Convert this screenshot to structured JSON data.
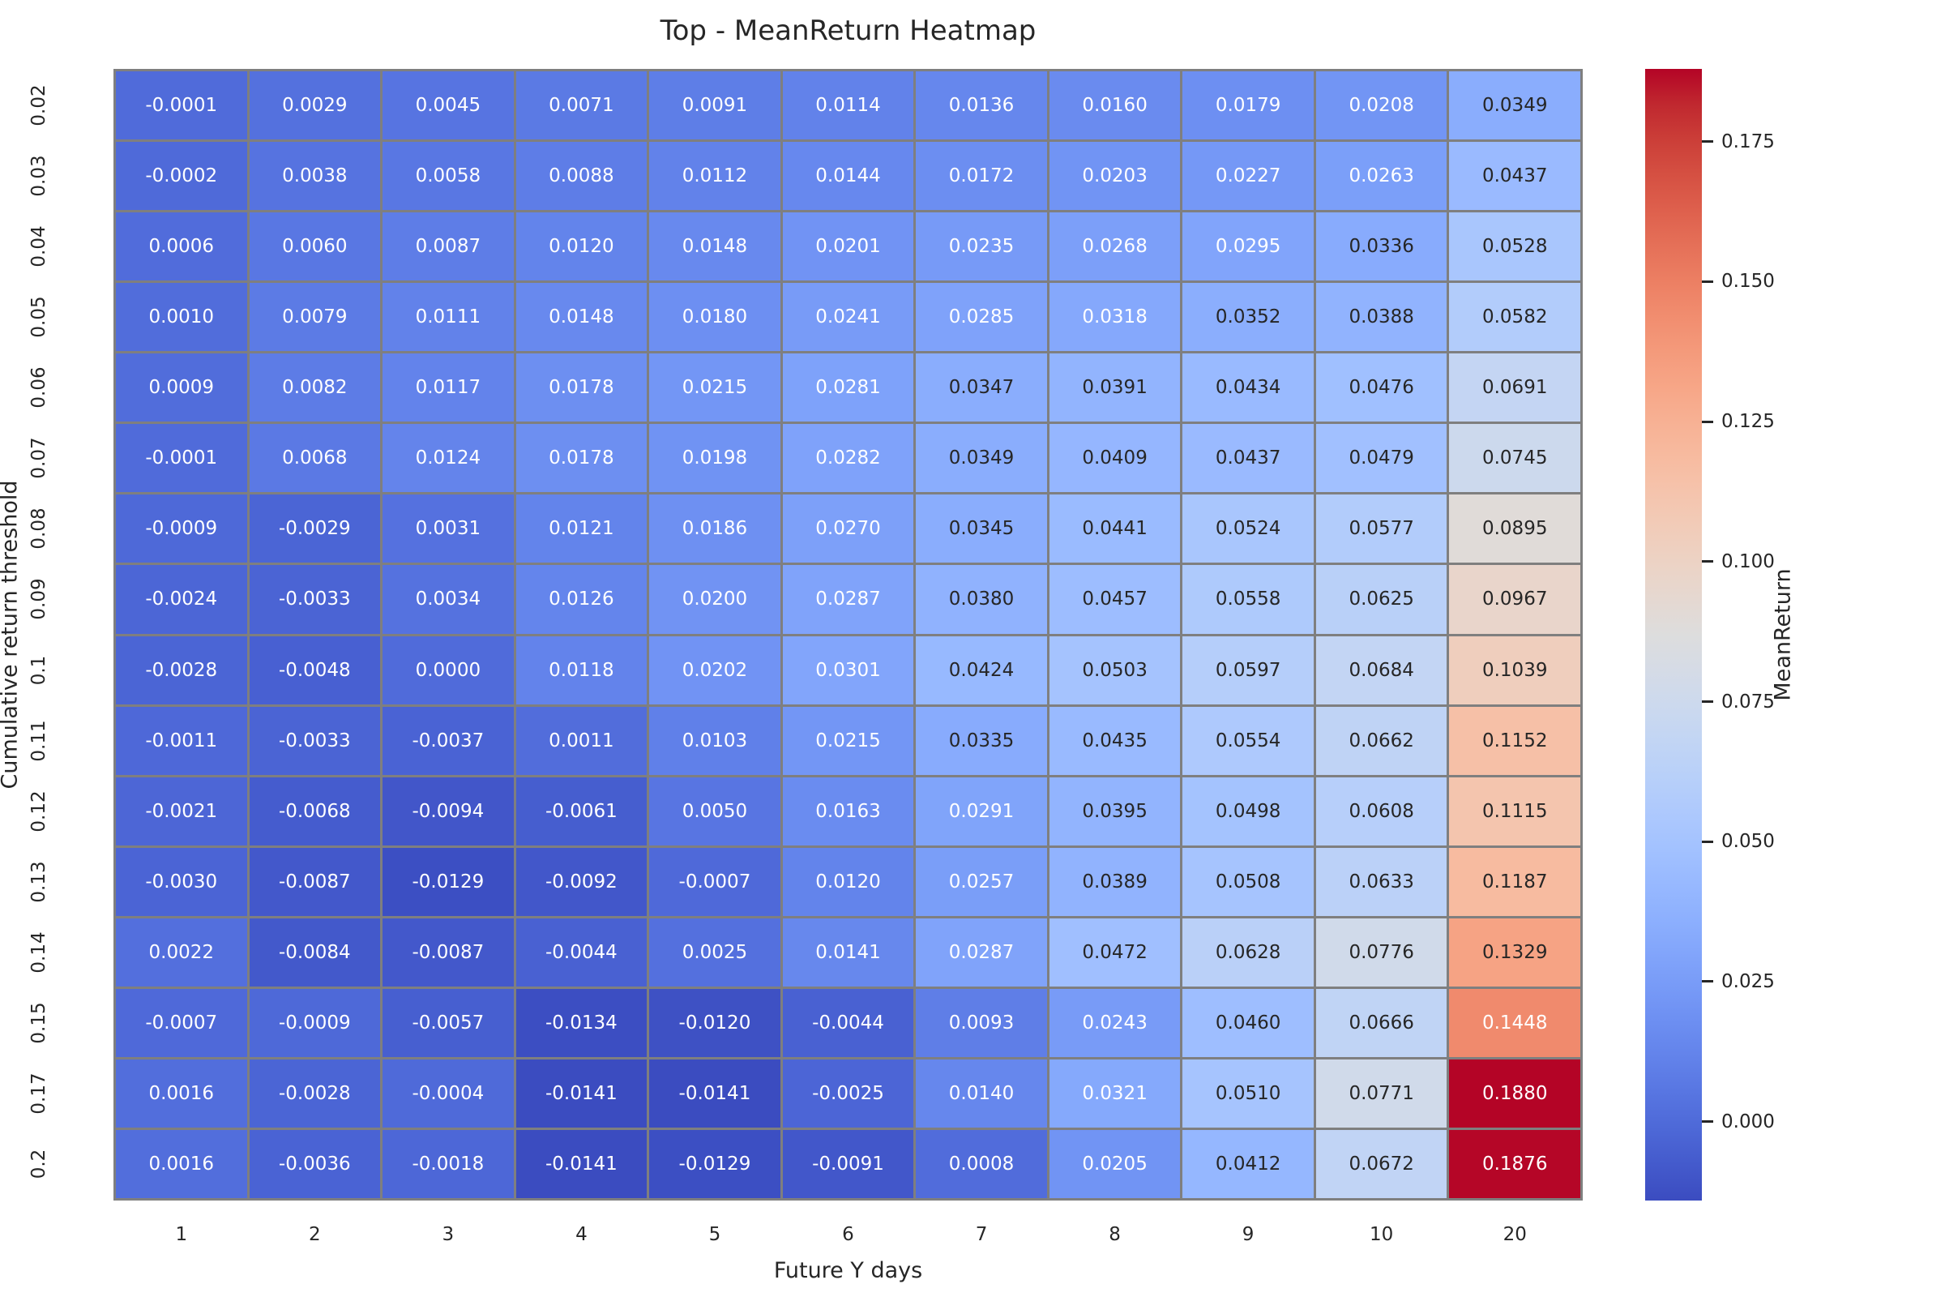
{
  "title": "Top - MeanReturn Heatmap",
  "x_axis": {
    "label": "Future Y days",
    "ticks": [
      "1",
      "2",
      "3",
      "4",
      "5",
      "6",
      "7",
      "8",
      "9",
      "10",
      "20"
    ]
  },
  "y_axis": {
    "label": "Cumulative return threshold",
    "ticks": [
      "0.02",
      "0.03",
      "0.04",
      "0.05",
      "0.06",
      "0.07",
      "0.08",
      "0.09",
      "0.1",
      "0.11",
      "0.12",
      "0.13",
      "0.14",
      "0.15",
      "0.17",
      "0.2"
    ]
  },
  "colorbar": {
    "label": "MeanReturn",
    "tick_values": [
      0.175,
      0.15,
      0.125,
      0.1,
      0.075,
      0.05,
      0.025,
      0.0
    ],
    "tick_labels": [
      "0.175",
      "0.150",
      "0.125",
      "0.100",
      "0.075",
      "0.050",
      "0.025",
      "0.000"
    ],
    "min_color": "#3b4cc0",
    "max_color": "#b40426"
  },
  "chart_data": {
    "type": "heatmap",
    "title": "Top - MeanReturn Heatmap",
    "xlabel": "Future Y days",
    "ylabel": "Cumulative return threshold",
    "colorbar_label": "MeanReturn",
    "colormap": "coolwarm",
    "vmin": -0.0141,
    "vmax": 0.188,
    "value_format_decimals": 4,
    "x": [
      "1",
      "2",
      "3",
      "4",
      "5",
      "6",
      "7",
      "8",
      "9",
      "10",
      "20"
    ],
    "y": [
      "0.02",
      "0.03",
      "0.04",
      "0.05",
      "0.06",
      "0.07",
      "0.08",
      "0.09",
      "0.1",
      "0.11",
      "0.12",
      "0.13",
      "0.14",
      "0.15",
      "0.17",
      "0.2"
    ],
    "values": [
      [
        -0.0001,
        0.0029,
        0.0045,
        0.0071,
        0.0091,
        0.0114,
        0.0136,
        0.016,
        0.0179,
        0.0208,
        0.0349
      ],
      [
        -0.0002,
        0.0038,
        0.0058,
        0.0088,
        0.0112,
        0.0144,
        0.0172,
        0.0203,
        0.0227,
        0.0263,
        0.0437
      ],
      [
        0.0006,
        0.006,
        0.0087,
        0.012,
        0.0148,
        0.0201,
        0.0235,
        0.0268,
        0.0295,
        0.0336,
        0.0528
      ],
      [
        0.001,
        0.0079,
        0.0111,
        0.0148,
        0.018,
        0.0241,
        0.0285,
        0.0318,
        0.0352,
        0.0388,
        0.0582
      ],
      [
        0.0009,
        0.0082,
        0.0117,
        0.0178,
        0.0215,
        0.0281,
        0.0347,
        0.0391,
        0.0434,
        0.0476,
        0.0691
      ],
      [
        -0.0001,
        0.0068,
        0.0124,
        0.0178,
        0.0198,
        0.0282,
        0.0349,
        0.0409,
        0.0437,
        0.0479,
        0.0745
      ],
      [
        -0.0009,
        -0.0029,
        0.0031,
        0.0121,
        0.0186,
        0.027,
        0.0345,
        0.0441,
        0.0524,
        0.0577,
        0.0895
      ],
      [
        -0.0024,
        -0.0033,
        0.0034,
        0.0126,
        0.02,
        0.0287,
        0.038,
        0.0457,
        0.0558,
        0.0625,
        0.0967
      ],
      [
        -0.0028,
        -0.0048,
        0.0,
        0.0118,
        0.0202,
        0.0301,
        0.0424,
        0.0503,
        0.0597,
        0.0684,
        0.1039
      ],
      [
        -0.0011,
        -0.0033,
        -0.0037,
        0.0011,
        0.0103,
        0.0215,
        0.0335,
        0.0435,
        0.0554,
        0.0662,
        0.1152
      ],
      [
        -0.0021,
        -0.0068,
        -0.0094,
        -0.0061,
        0.005,
        0.0163,
        0.0291,
        0.0395,
        0.0498,
        0.0608,
        0.1115
      ],
      [
        -0.003,
        -0.0087,
        -0.0129,
        -0.0092,
        -0.0007,
        0.012,
        0.0257,
        0.0389,
        0.0508,
        0.0633,
        0.1187
      ],
      [
        0.0022,
        -0.0084,
        -0.0087,
        -0.0044,
        0.0025,
        0.0141,
        0.0287,
        0.0472,
        0.0628,
        0.0776,
        0.1329
      ],
      [
        -0.0007,
        -0.0009,
        -0.0057,
        -0.0134,
        -0.012,
        -0.0044,
        0.0093,
        0.0243,
        0.046,
        0.0666,
        0.1448
      ],
      [
        0.0016,
        -0.0028,
        -0.0004,
        -0.0141,
        -0.0141,
        -0.0025,
        0.014,
        0.0321,
        0.051,
        0.0771,
        0.188
      ],
      [
        0.0016,
        -0.0036,
        -0.0018,
        -0.0141,
        -0.0129,
        -0.0091,
        0.0008,
        0.0205,
        0.0412,
        0.0672,
        0.1876
      ]
    ]
  }
}
